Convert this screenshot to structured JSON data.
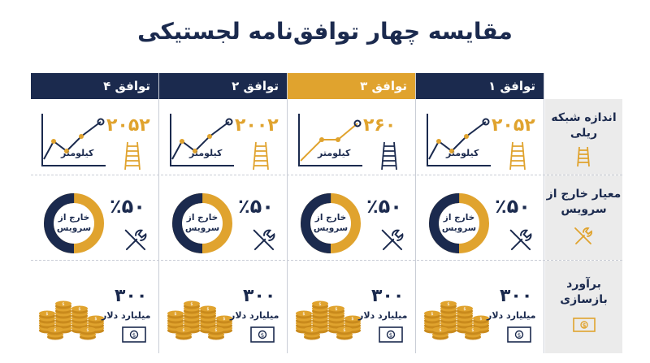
{
  "title": "مقایسه چهار توافق‌نامه لجستیکی",
  "colors": {
    "navy": "#1b2a4e",
    "gold": "#e0a32e",
    "label_bg": "#ebebeb"
  },
  "rows": [
    {
      "label": "اندازه شبکه ریلی",
      "icon": "railway-track-icon"
    },
    {
      "label": "معیار خارج از سرویس",
      "icon": "wrench-screwdriver-icon"
    },
    {
      "label": "برآورد بازسازی",
      "icon": "banknote-icon"
    }
  ],
  "agreements": [
    {
      "name": "توافق ۱",
      "highlight": false,
      "network_km": "۲۰۵۲",
      "km_unit": "کیلومتر",
      "out_of_service_pct": "٪۵۰",
      "out_of_service_fraction": 0.5,
      "donut_label": "خارج از سرویس",
      "rebuild_cost": "۳۰۰",
      "cost_unit": "میلیارد دلار"
    },
    {
      "name": "توافق ۳",
      "highlight": true,
      "network_km": "۲۶۰",
      "km_unit": "کیلومتر",
      "out_of_service_pct": "٪۵۰",
      "out_of_service_fraction": 0.5,
      "donut_label": "خارج از سرویس",
      "rebuild_cost": "۳۰۰",
      "cost_unit": "میلیارد دلار"
    },
    {
      "name": "توافق ۲",
      "highlight": false,
      "network_km": "۲۰۰۲",
      "km_unit": "کیلومتر",
      "out_of_service_pct": "٪۵۰",
      "out_of_service_fraction": 0.5,
      "donut_label": "خارج از سرویس",
      "rebuild_cost": "۳۰۰",
      "cost_unit": "میلیارد دلار"
    },
    {
      "name": "توافق ۴",
      "highlight": false,
      "network_km": "۲۰۵۲",
      "km_unit": "کیلومتر",
      "out_of_service_pct": "٪۵۰",
      "out_of_service_fraction": 0.5,
      "donut_label": "خارج از سرویس",
      "rebuild_cost": "۳۰۰",
      "cost_unit": "میلیارد دلار"
    }
  ]
}
